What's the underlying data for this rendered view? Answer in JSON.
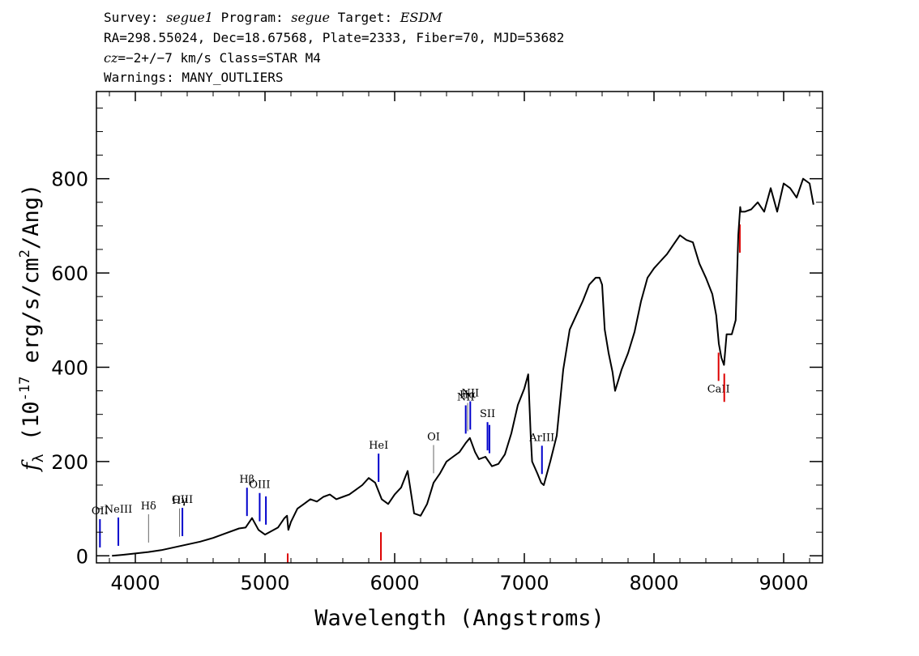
{
  "header": {
    "survey_label": "Survey:",
    "survey": "segue1",
    "program_label": "Program:",
    "program": "segue",
    "target_label": "Target:",
    "target": "ESDM",
    "line2": "RA=298.55024, Dec=18.67568, Plate=2333, Fiber=70, MJD=53682",
    "cz_label": "cz",
    "cz_value": "=−2+/−7 km/s Class=STAR M4",
    "warnings": "Warnings: MANY_OUTLIERS"
  },
  "colors": {
    "blue": "#0000cc",
    "red": "#dd0000",
    "gray": "#666666"
  },
  "chart_data": {
    "type": "line",
    "xlabel": "Wavelength (Angstroms)",
    "ylabel_prefix": "f",
    "ylabel_sub": "λ",
    "ylabel_rest": "(10",
    "ylabel_exp": "-17",
    "ylabel_tail": " erg/s/cm",
    "ylabel_exp2": "2",
    "ylabel_end": "/Ang)",
    "xlim": [
      3700,
      9300
    ],
    "ylim": [
      -15,
      985
    ],
    "xticks": [
      4000,
      5000,
      6000,
      7000,
      8000,
      9000
    ],
    "yticks": [
      0,
      200,
      400,
      600,
      800
    ],
    "xtick_labels": [
      "4000",
      "5000",
      "6000",
      "7000",
      "8000",
      "9000"
    ],
    "ytick_labels": [
      "0",
      "200",
      "400",
      "600",
      "800"
    ],
    "series": [
      {
        "x": [
          3820,
          3900,
          4000,
          4100,
          4200,
          4300,
          4400,
          4500,
          4600,
          4700,
          4800,
          4850,
          4900,
          4950,
          5000,
          5100,
          5150,
          5170,
          5180,
          5200,
          5250,
          5300,
          5350,
          5400,
          5450,
          5500,
          5550,
          5600,
          5650,
          5700,
          5750,
          5800,
          5850,
          5900,
          5950,
          6000,
          6050,
          6100,
          6150,
          6200,
          6250,
          6300,
          6350,
          6400,
          6450,
          6500,
          6550,
          6580,
          6620,
          6650,
          6700,
          6750,
          6800,
          6850,
          6900,
          6950,
          7000,
          7030,
          7050,
          7060,
          7100,
          7130,
          7150,
          7200,
          7250,
          7300,
          7350,
          7400,
          7450,
          7500,
          7550,
          7580,
          7600,
          7620,
          7650,
          7680,
          7700,
          7750,
          7800,
          7850,
          7900,
          7950,
          8000,
          8050,
          8100,
          8150,
          8200,
          8250,
          8300,
          8350,
          8400,
          8450,
          8480,
          8500,
          8520,
          8540,
          8560,
          8600,
          8630,
          8650,
          8665,
          8670,
          8700,
          8750,
          8800,
          8850,
          8900,
          8950,
          9000,
          9050,
          9100,
          9150,
          9200,
          9230
        ],
        "y": [
          0,
          2,
          5,
          8,
          12,
          18,
          24,
          30,
          38,
          48,
          58,
          60,
          80,
          55,
          45,
          60,
          80,
          85,
          55,
          72,
          100,
          110,
          120,
          115,
          125,
          130,
          120,
          125,
          130,
          140,
          150,
          165,
          155,
          120,
          110,
          130,
          145,
          180,
          90,
          85,
          110,
          155,
          175,
          200,
          210,
          220,
          240,
          250,
          220,
          205,
          210,
          190,
          195,
          215,
          260,
          320,
          355,
          385,
          250,
          200,
          175,
          155,
          150,
          200,
          255,
          395,
          480,
          510,
          540,
          575,
          590,
          590,
          575,
          480,
          430,
          390,
          350,
          395,
          430,
          475,
          540,
          590,
          610,
          625,
          640,
          660,
          680,
          670,
          665,
          620,
          590,
          555,
          510,
          450,
          420,
          405,
          470,
          470,
          500,
          680,
          740,
          730,
          730,
          735,
          750,
          730,
          780,
          730,
          790,
          780,
          760,
          800,
          790,
          745
        ]
      }
    ],
    "lines": [
      {
        "name": "OII",
        "x": 3727,
        "kind": "blue"
      },
      {
        "name": "NeIII",
        "x": 3869,
        "kind": "blue"
      },
      {
        "name": "Hδ",
        "x": 4102,
        "kind": "gray"
      },
      {
        "name": "Hγ",
        "x": 4341,
        "kind": "gray"
      },
      {
        "name": "OIII",
        "x": 4363,
        "kind": "blue"
      },
      {
        "name": "Hβ",
        "x": 4861,
        "kind": "blue"
      },
      {
        "name": "OIII",
        "x": 4959,
        "kind": "blue"
      },
      {
        "name": "",
        "x": 5007,
        "kind": "blue"
      },
      {
        "name": "HeI",
        "x": 5876,
        "kind": "blue"
      },
      {
        "name": "OI",
        "x": 6300,
        "kind": "gray"
      },
      {
        "name": "NII",
        "x": 6548,
        "kind": "blue"
      },
      {
        "name": "Hα",
        "x": 6563,
        "kind": "gray"
      },
      {
        "name": "NII",
        "x": 6583,
        "kind": "blue"
      },
      {
        "name": "SII",
        "x": 6716,
        "kind": "blue"
      },
      {
        "name": "",
        "x": 6731,
        "kind": "blue"
      },
      {
        "name": "ArIII",
        "x": 7136,
        "kind": "blue"
      },
      {
        "name": "",
        "x": 5175,
        "kind": "red"
      },
      {
        "name": "",
        "x": 5894,
        "kind": "red"
      },
      {
        "name": "CaII",
        "x": 8498,
        "kind": "red"
      },
      {
        "name": "",
        "x": 8542,
        "kind": "red"
      },
      {
        "name": "",
        "x": 8662,
        "kind": "red"
      }
    ]
  }
}
